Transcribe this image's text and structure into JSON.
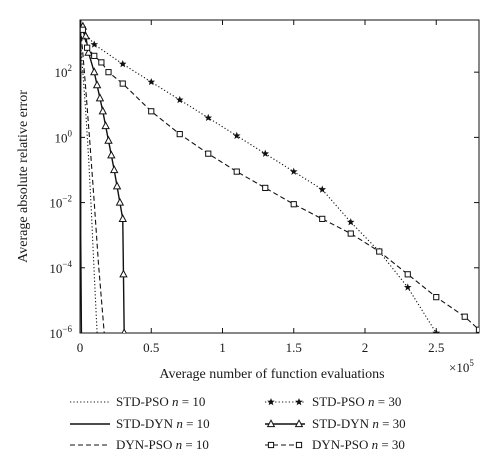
{
  "chart_data": {
    "type": "line",
    "title": "",
    "xlabel": "Average number of function evaluations",
    "ylabel": "Average absolute relative error",
    "x_exponent_label": "×10",
    "x_exponent_power": "5",
    "xlim": [
      0,
      2.8
    ],
    "ylim_log10": [
      -6,
      3.6
    ],
    "y_scale": "log",
    "grid": false,
    "legend_position": "below-plot",
    "x_ticks": [
      {
        "value": 0,
        "label": "0"
      },
      {
        "value": 0.5,
        "label": "0.5"
      },
      {
        "value": 1,
        "label": "1"
      },
      {
        "value": 1.5,
        "label": "1.5"
      },
      {
        "value": 2,
        "label": "2"
      },
      {
        "value": 2.5,
        "label": "2.5"
      }
    ],
    "y_ticks": [
      {
        "value": -6,
        "base": "10",
        "exp": "−6"
      },
      {
        "value": -4,
        "base": "10",
        "exp": "−4"
      },
      {
        "value": -2,
        "base": "10",
        "exp": "−2"
      },
      {
        "value": 0,
        "base": "10",
        "exp": "0"
      },
      {
        "value": 2,
        "base": "10",
        "exp": "2"
      }
    ],
    "series": [
      {
        "name": "STD-PSO n = 10",
        "label_prefix": "STD-PSO ",
        "label_var": "n",
        "label_value": " = 10",
        "dash": "dotted",
        "marker": "none",
        "x": [
          0,
          0.02,
          0.04,
          0.06,
          0.08,
          0.1,
          0.12
        ],
        "log10_y": [
          3.1,
          2.0,
          0.8,
          -0.6,
          -2.3,
          -4.2,
          -6.0
        ]
      },
      {
        "name": "STD-DYN n = 10",
        "label_prefix": "STD-DYN ",
        "label_var": "n",
        "label_value": " = 10",
        "dash": "solid",
        "marker": "none",
        "x": [
          0.005,
          0.005,
          0.01
        ],
        "log10_y": [
          3.6,
          -3.0,
          -6.0
        ]
      },
      {
        "name": "DYN-PSO n = 10",
        "label_prefix": "DYN-PSO ",
        "label_var": "n",
        "label_value": " = 10",
        "dash": "dashed",
        "marker": "none",
        "x": [
          0.01,
          0.04,
          0.07,
          0.1,
          0.13,
          0.17
        ],
        "log10_y": [
          3.1,
          1.5,
          -0.2,
          -2.0,
          -3.9,
          -6.0
        ]
      },
      {
        "name": "STD-PSO n = 30",
        "label_prefix": "STD-PSO ",
        "label_var": "n",
        "label_value": " = 30",
        "dash": "dotted",
        "marker": "star",
        "x": [
          0.02,
          0.1,
          0.3,
          0.5,
          0.7,
          0.9,
          1.1,
          1.3,
          1.5,
          1.7,
          1.9,
          2.1,
          2.3,
          2.5
        ],
        "log10_y": [
          3.3,
          2.85,
          2.25,
          1.7,
          1.15,
          0.6,
          0.05,
          -0.5,
          -1.05,
          -1.6,
          -2.6,
          -3.5,
          -4.6,
          -6.0
        ]
      },
      {
        "name": "STD-DYN n = 30",
        "label_prefix": "STD-DYN ",
        "label_var": "n",
        "label_value": " = 30",
        "dash": "solid",
        "marker": "triangle",
        "x": [
          0.02,
          0.04,
          0.06,
          0.1,
          0.12,
          0.14,
          0.16,
          0.18,
          0.2,
          0.22,
          0.24,
          0.26,
          0.28,
          0.3,
          0.305,
          0.31
        ],
        "log10_y": [
          3.4,
          3.1,
          2.6,
          2.0,
          1.6,
          1.2,
          0.8,
          0.35,
          -0.1,
          -0.55,
          -1.0,
          -1.5,
          -2.0,
          -2.5,
          -4.2,
          -6.0
        ]
      },
      {
        "name": "DYN-PSO n = 30",
        "label_prefix": "DYN-PSO ",
        "label_var": "n",
        "label_value": " = 30",
        "dash": "dashed",
        "marker": "square",
        "x": [
          0.02,
          0.05,
          0.1,
          0.15,
          0.2,
          0.3,
          0.5,
          0.7,
          0.9,
          1.1,
          1.3,
          1.5,
          1.7,
          1.9,
          2.1,
          2.3,
          2.5,
          2.7,
          2.8
        ],
        "log10_y": [
          3.3,
          2.75,
          2.5,
          2.3,
          2.0,
          1.65,
          0.8,
          0.1,
          -0.5,
          -1.05,
          -1.55,
          -2.05,
          -2.5,
          -2.95,
          -3.5,
          -4.2,
          -4.9,
          -5.5,
          -5.9
        ]
      }
    ]
  }
}
